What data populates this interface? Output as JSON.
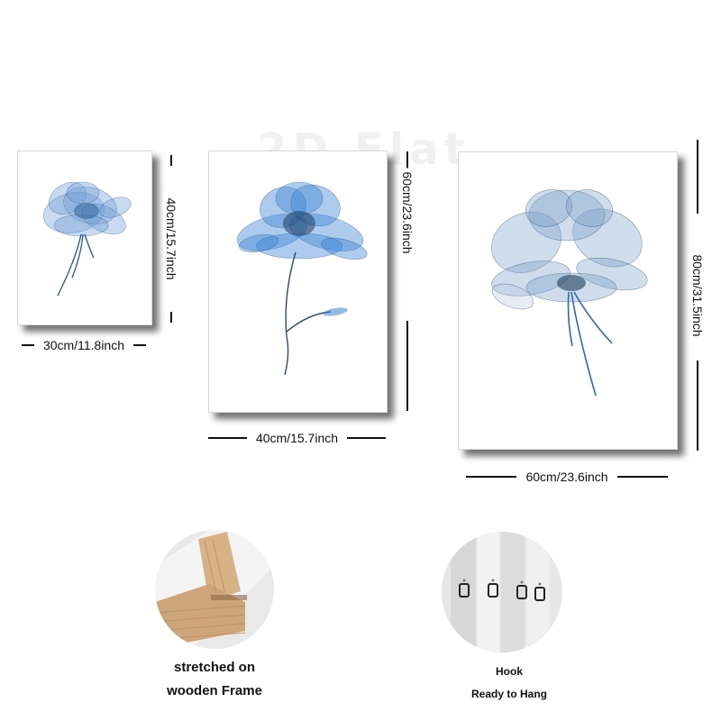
{
  "watermark": "2D Flat",
  "prints": {
    "small": {
      "width_label": "30cm/11.8inch",
      "height_label": "40cm/15.7inch"
    },
    "medium": {
      "width_label": "40cm/15.7inch",
      "height_label": "60cm/23.6inch"
    },
    "large": {
      "width_label": "60cm/23.6inch",
      "height_label": "80cm/31.5inch"
    }
  },
  "details": {
    "frame": {
      "line1": "stretched on",
      "line2": "wooden Frame"
    },
    "hook": {
      "line1": "Hook",
      "line2": "Ready to Hang"
    }
  },
  "colors": {
    "flower_blue": "#3a78c2",
    "flower_light": "#9fc2e6",
    "flower_dark": "#1d3e63",
    "wood": "#d8b48a"
  }
}
